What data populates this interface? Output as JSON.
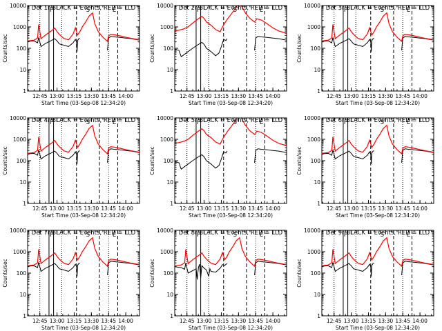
{
  "chart_data": [
    {
      "type": "line",
      "title": "Det 1r BLACK = Events, RED = LLD",
      "xlabel": "Start Time (03-Sep-08 12:34:20)",
      "ylabel": "Counts/sec",
      "y_scale": "log",
      "ylim": [
        1,
        10000
      ],
      "yticks": [
        "1",
        "10",
        "100",
        "1000",
        "10000"
      ],
      "xticks": [
        "12:45",
        "13:00",
        "13:15",
        "13:30",
        "13:45",
        "14:00"
      ],
      "xrange": [
        "12:34:20",
        "14:12"
      ],
      "marker_labels": [
        "F",
        "S",
        "E"
      ],
      "events_key": "a",
      "lld_key": "a",
      "colors": {
        "events": "#000000",
        "lld": "#ff0000"
      }
    },
    {
      "type": "line",
      "title": "Det 2r BLACK = Events, RED = LLD",
      "xlabel": "Start Time (03-Sep-08 12:34:20)",
      "ylabel": "Counts/sec",
      "y_scale": "log",
      "ylim": [
        1,
        10000
      ],
      "yticks": [
        "1",
        "10",
        "100",
        "1000",
        "10000"
      ],
      "xticks": [
        "12:45",
        "13:00",
        "13:15",
        "13:30",
        "13:45",
        "14:00"
      ],
      "xrange": [
        "12:34:20",
        "14:12"
      ],
      "marker_labels": [
        "F",
        "S",
        "E"
      ],
      "events_key": "b",
      "lld_key": "b",
      "colors": {
        "events": "#000000",
        "lld": "#ff0000"
      }
    },
    {
      "type": "line",
      "title": "Det 3r BLACK = Events, RED = LLD",
      "xlabel": "Start Time (03-Sep-08 12:34:20)",
      "ylabel": "Counts/sec",
      "y_scale": "log",
      "ylim": [
        1,
        10000
      ],
      "yticks": [
        "1",
        "10",
        "100",
        "1000",
        "10000"
      ],
      "xticks": [
        "12:45",
        "13:00",
        "13:15",
        "13:30",
        "13:45",
        "14:00"
      ],
      "xrange": [
        "12:34:20",
        "14:12"
      ],
      "marker_labels": [
        "F",
        "S",
        "E"
      ],
      "events_key": "a",
      "lld_key": "a",
      "colors": {
        "events": "#000000",
        "lld": "#ff0000"
      }
    },
    {
      "type": "line",
      "title": "Det 4r BLACK = Events, RED = LLD",
      "xlabel": "Start Time (03-Sep-08 12:34:20)",
      "ylabel": "Counts/sec",
      "y_scale": "log",
      "ylim": [
        1,
        10000
      ],
      "yticks": [
        "1",
        "10",
        "100",
        "1000",
        "10000"
      ],
      "xticks": [
        "12:45",
        "13:00",
        "13:15",
        "13:30",
        "13:45",
        "14:00"
      ],
      "xrange": [
        "12:34:20",
        "14:12"
      ],
      "marker_labels": [
        "F",
        "S",
        "E"
      ],
      "events_key": "a",
      "lld_key": "a",
      "colors": {
        "events": "#000000",
        "lld": "#ff0000"
      }
    },
    {
      "type": "line",
      "title": "Det 5r BLACK = Events, RED = LLD",
      "xlabel": "Start Time (03-Sep-08 12:34:20)",
      "ylabel": "Counts/sec",
      "y_scale": "log",
      "ylim": [
        1,
        10000
      ],
      "yticks": [
        "1",
        "10",
        "100",
        "1000",
        "10000"
      ],
      "xticks": [
        "12:45",
        "13:00",
        "13:15",
        "13:30",
        "13:45",
        "14:00"
      ],
      "xrange": [
        "12:34:20",
        "14:12"
      ],
      "marker_labels": [
        "F",
        "S",
        "E"
      ],
      "events_key": "b",
      "lld_key": "b",
      "colors": {
        "events": "#000000",
        "lld": "#ff0000"
      }
    },
    {
      "type": "line",
      "title": "Det 6r BLACK = Events, RED = LLD",
      "xlabel": "Start Time (03-Sep-08 12:34:20)",
      "ylabel": "Counts/sec",
      "y_scale": "log",
      "ylim": [
        1,
        10000
      ],
      "yticks": [
        "1",
        "10",
        "100",
        "1000",
        "10000"
      ],
      "xticks": [
        "12:45",
        "13:00",
        "13:15",
        "13:30",
        "13:45",
        "14:00"
      ],
      "xrange": [
        "12:34:20",
        "14:12"
      ],
      "marker_labels": [
        "F",
        "S",
        "E"
      ],
      "events_key": "a",
      "lld_key": "a",
      "colors": {
        "events": "#000000",
        "lld": "#ff0000"
      }
    },
    {
      "type": "line",
      "title": "Det 7r BLACK = Events, RED = LLD",
      "xlabel": "Start Time (03-Sep-08 12:34:20)",
      "ylabel": "Counts/sec",
      "y_scale": "log",
      "ylim": [
        1,
        10000
      ],
      "yticks": [
        "1",
        "10",
        "100",
        "1000",
        "10000"
      ],
      "xticks": [
        "12:45",
        "13:00",
        "13:15",
        "13:30",
        "13:45",
        "14:00"
      ],
      "xrange": [
        "12:34:20",
        "14:12"
      ],
      "marker_labels": [
        "F",
        "S",
        "E"
      ],
      "events_key": "a",
      "lld_key": "a",
      "colors": {
        "events": "#000000",
        "lld": "#ff0000"
      }
    },
    {
      "type": "line",
      "title": "Det 8r BLACK = Events, RED = LLD",
      "xlabel": "Start Time (03-Sep-08 12:34:20)",
      "ylabel": "Counts/sec",
      "y_scale": "log",
      "ylim": [
        1,
        10000
      ],
      "yticks": [
        "1",
        "10",
        "100",
        "1000",
        "10000"
      ],
      "xticks": [
        "12:45",
        "13:00",
        "13:15",
        "13:30",
        "13:45",
        "14:00"
      ],
      "xrange": [
        "12:34:20",
        "14:12"
      ],
      "marker_labels": [
        "F",
        "S",
        "E"
      ],
      "events_key": "c",
      "lld_key": "a",
      "colors": {
        "events": "#000000",
        "lld": "#ff0000"
      }
    },
    {
      "type": "line",
      "title": "Det 9r BLACK = Events, RED = LLD",
      "xlabel": "Start Time (03-Sep-08 12:34:20)",
      "ylabel": "Counts/sec",
      "y_scale": "log",
      "ylim": [
        1,
        10000
      ],
      "yticks": [
        "1",
        "10",
        "100",
        "1000",
        "10000"
      ],
      "xticks": [
        "12:45",
        "13:00",
        "13:15",
        "13:30",
        "13:45",
        "14:00"
      ],
      "xrange": [
        "12:34:20",
        "14:12"
      ],
      "marker_labels": [
        "F",
        "S",
        "E"
      ],
      "events_key": "a",
      "lld_key": "a",
      "colors": {
        "events": "#000000",
        "lld": "#ff0000"
      }
    }
  ],
  "profiles": {
    "lld": {
      "a": {
        "x": [
          "12:34:20",
          "12:40",
          "12:43",
          "12:44",
          "12:46",
          "12:50",
          "12:55",
          "12:58",
          "13:00",
          "13:02",
          "13:06",
          "13:10",
          "13:14",
          "13:16",
          "13:18",
          "13:20",
          "13:22",
          "13:25",
          "13:28",
          "13:31",
          "13:33",
          "13:36",
          "13:40",
          "13:44",
          "13:45",
          "13:47",
          "13:50",
          "13:55",
          "14:00",
          "14:05",
          "14:12"
        ],
        "y": [
          220,
          240,
          300,
          1300,
          280,
          420,
          650,
          880,
          600,
          450,
          290,
          250,
          460,
          900,
          420,
          600,
          1000,
          1700,
          3200,
          4500,
          1400,
          600,
          330,
          210,
          380,
          450,
          430,
          380,
          330,
          290,
          250
        ]
      },
      "b": {
        "x": [
          "12:34:20",
          "12:38",
          "12:42",
          "12:46",
          "12:50",
          "12:54",
          "12:58",
          "13:00",
          "13:02",
          "13:06",
          "13:10",
          "13:14",
          "13:16",
          "13:18",
          "13:21",
          "13:24",
          "13:27",
          "13:30",
          "13:33",
          "13:36",
          "13:40",
          "13:44",
          "13:46",
          "13:50",
          "13:55",
          "14:00",
          "14:05",
          "14:12"
        ],
        "y": [
          650,
          700,
          800,
          1000,
          1500,
          2200,
          3100,
          2500,
          1700,
          1200,
          750,
          600,
          1000,
          1500,
          2600,
          4200,
          7000,
          12000,
          9000,
          4500,
          2500,
          1700,
          2400,
          2100,
          1400,
          900,
          650,
          500
        ]
      }
    },
    "events": {
      "a": {
        "x": [
          "12:34:20",
          "12:40",
          "12:43",
          "12:44",
          "12:46",
          "12:50",
          "12:55",
          "12:58",
          "13:00",
          "13:02",
          "13:06",
          "13:10",
          "13:14",
          "13:16",
          "13:17",
          "13:17.5",
          "13:18",
          "13:19",
          "13:20"
        ],
        "y": [
          210,
          220,
          180,
          320,
          120,
          170,
          230,
          280,
          220,
          160,
          140,
          120,
          180,
          260,
          200,
          70,
          230,
          280,
          290
        ]
      },
      "b": {
        "x": [
          "12:34:20",
          "12:38",
          "12:40",
          "12:46",
          "12:50",
          "12:54",
          "12:58",
          "13:00",
          "13:02",
          "13:06",
          "13:10",
          "13:13",
          "13:15",
          "13:17",
          "13:19",
          "13:20"
        ],
        "y": [
          90,
          80,
          40,
          70,
          100,
          140,
          190,
          150,
          100,
          70,
          45,
          60,
          120,
          260,
          230,
          280
        ]
      },
      "c": {
        "x": [
          "12:34:20",
          "12:40",
          "12:43",
          "12:44",
          "12:46",
          "12:50",
          "12:53",
          "12:54",
          "12:55",
          "12:56",
          "12:57",
          "12:58",
          "13:00",
          "13:02",
          "13:04",
          "13:05",
          "13:06",
          "13:10",
          "13:14",
          "13:16",
          "13:18",
          "13:20"
        ],
        "y": [
          200,
          180,
          150,
          300,
          100,
          130,
          160,
          50,
          180,
          260,
          60,
          220,
          170,
          140,
          70,
          160,
          120,
          110,
          170,
          250,
          230,
          280
        ]
      },
      "post": {
        "x": [
          "13:44",
          "13:45",
          "13:47",
          "13:50",
          "13:55",
          "14:00",
          "14:05",
          "14:12"
        ],
        "y": [
          80,
          300,
          360,
          340,
          320,
          300,
          280,
          240
        ]
      }
    }
  }
}
